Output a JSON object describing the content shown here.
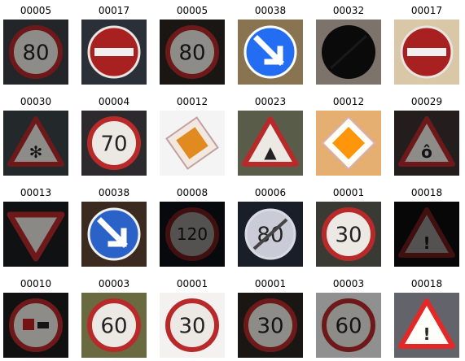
{
  "grid": {
    "cells": [
      {
        "label": "00005",
        "sign": "speed",
        "text": "80",
        "bg": "#3a3d44",
        "tone": "dark"
      },
      {
        "label": "00017",
        "sign": "noentry",
        "bg": "#2b2f38",
        "tone": "normal"
      },
      {
        "label": "00005",
        "sign": "speed",
        "text": "80",
        "bg": "#2a2420",
        "tone": "dark"
      },
      {
        "label": "00038",
        "sign": "keepright",
        "bg": "#7a6a50",
        "tone": "bright"
      },
      {
        "label": "00032",
        "sign": "endlimits",
        "bg": "#cfc2b0",
        "tone": "dark"
      },
      {
        "label": "00017",
        "sign": "noentry",
        "bg": "#d8c8a8",
        "tone": "normal"
      },
      {
        "label": "00030",
        "sign": "triangle",
        "inner": "snow",
        "bg": "#3b4248",
        "tone": "dark"
      },
      {
        "label": "00004",
        "sign": "speed",
        "text": "70",
        "bg": "#2c2a2c",
        "tone": "normal"
      },
      {
        "label": "00012",
        "sign": "priority",
        "bg": "#f4f4f4",
        "tone": "normal",
        "tilt": true
      },
      {
        "label": "00023",
        "sign": "triangle",
        "inner": "car",
        "bg": "#5a5c4a",
        "tone": "normal"
      },
      {
        "label": "00012",
        "sign": "priority",
        "bg": "#c8a070",
        "tone": "bright"
      },
      {
        "label": "00029",
        "sign": "triangle",
        "inner": "bike",
        "bg": "#3a3230",
        "tone": "dark"
      },
      {
        "label": "00013",
        "sign": "yield",
        "bg": "#1a1c1e",
        "tone": "dark"
      },
      {
        "label": "00038",
        "sign": "keepright",
        "bg": "#3a2a20",
        "tone": "normal"
      },
      {
        "label": "00008",
        "sign": "speed",
        "text": "120",
        "bg": "#181a22",
        "tone": "vdark"
      },
      {
        "label": "00006",
        "sign": "endspeed",
        "text": "80",
        "bg": "#1a1e28",
        "tone": "normal"
      },
      {
        "label": "00001",
        "sign": "speed",
        "text": "30",
        "bg": "#3a3a34",
        "tone": "normal"
      },
      {
        "label": "00018",
        "sign": "triangle",
        "inner": "excl",
        "bg": "#141418",
        "tone": "vdark"
      },
      {
        "label": "00010",
        "sign": "nopass",
        "bg": "#1e1c1e",
        "tone": "dark"
      },
      {
        "label": "00003",
        "sign": "speed",
        "text": "60",
        "bg": "#6a6a40",
        "tone": "normal"
      },
      {
        "label": "00001",
        "sign": "speed",
        "text": "30",
        "bg": "#f4f2f0",
        "tone": "normal"
      },
      {
        "label": "00001",
        "sign": "speed",
        "text": "30",
        "bg": "#2a2420",
        "tone": "dark"
      },
      {
        "label": "00003",
        "sign": "speed",
        "text": "60",
        "bg": "#f0f0f2",
        "tone": "dark"
      },
      {
        "label": "00018",
        "sign": "triangle",
        "inner": "excl",
        "bg": "#5a5a60",
        "tone": "bright"
      }
    ]
  }
}
